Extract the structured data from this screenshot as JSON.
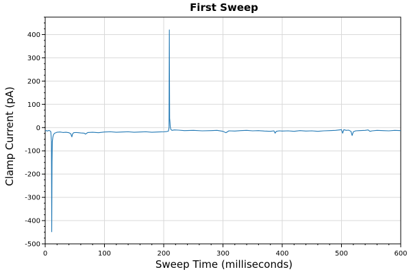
{
  "chart_data": {
    "type": "line",
    "title": "First Sweep",
    "xlabel": "Sweep Time (milliseconds)",
    "ylabel": "Clamp Current (pA)",
    "xlim": [
      0,
      600
    ],
    "ylim": [
      -500,
      475
    ],
    "xticks": [
      0,
      100,
      200,
      300,
      400,
      500,
      600
    ],
    "yticks": [
      -500,
      -400,
      -300,
      -200,
      -100,
      0,
      100,
      200,
      300,
      400
    ],
    "grid": true,
    "legend": "none",
    "series": [
      {
        "color": "#1f77b4",
        "x": [
          0,
          2,
          4,
          6,
          8,
          9.5,
          10.5,
          11,
          11.5,
          12,
          13,
          14,
          16,
          18,
          20,
          25,
          30,
          35,
          40,
          43,
          45,
          46,
          48,
          52,
          56,
          60,
          66,
          68,
          72,
          80,
          90,
          100,
          110,
          120,
          130,
          140,
          150,
          160,
          170,
          180,
          190,
          200,
          205,
          208,
          209,
          209.5,
          210,
          210.5,
          211,
          212,
          214,
          218,
          225,
          235,
          250,
          265,
          280,
          290,
          300,
          305,
          310,
          320,
          330,
          340,
          350,
          360,
          370,
          380,
          386,
          388,
          390,
          395,
          400,
          410,
          420,
          430,
          440,
          450,
          460,
          470,
          480,
          490,
          500,
          502,
          504,
          508,
          512,
          516,
          518,
          520,
          524,
          530,
          540,
          545,
          548,
          552,
          560,
          570,
          580,
          590,
          600
        ],
        "values": [
          -14,
          -13,
          -15,
          -12,
          -14,
          -18,
          -60,
          -448,
          -150,
          -60,
          -40,
          -30,
          -24,
          -22,
          -20,
          -19,
          -21,
          -20,
          -22,
          -26,
          -40,
          -28,
          -22,
          -21,
          -22,
          -23,
          -24,
          -28,
          -21,
          -20,
          -22,
          -19,
          -18,
          -20,
          -19,
          -18,
          -20,
          -19,
          -18,
          -20,
          -19,
          -18,
          -17,
          -15,
          0,
          420,
          40,
          25,
          5,
          -8,
          -12,
          -10,
          -11,
          -13,
          -12,
          -14,
          -13,
          -12,
          -16,
          -22,
          -14,
          -15,
          -13,
          -12,
          -14,
          -13,
          -15,
          -16,
          -14,
          -24,
          -16,
          -14,
          -15,
          -14,
          -16,
          -13,
          -15,
          -14,
          -16,
          -14,
          -13,
          -12,
          -9,
          -24,
          -9,
          -12,
          -11,
          -16,
          -34,
          -18,
          -14,
          -13,
          -12,
          -10,
          -16,
          -14,
          -12,
          -13,
          -14,
          -12,
          -13
        ]
      }
    ]
  }
}
